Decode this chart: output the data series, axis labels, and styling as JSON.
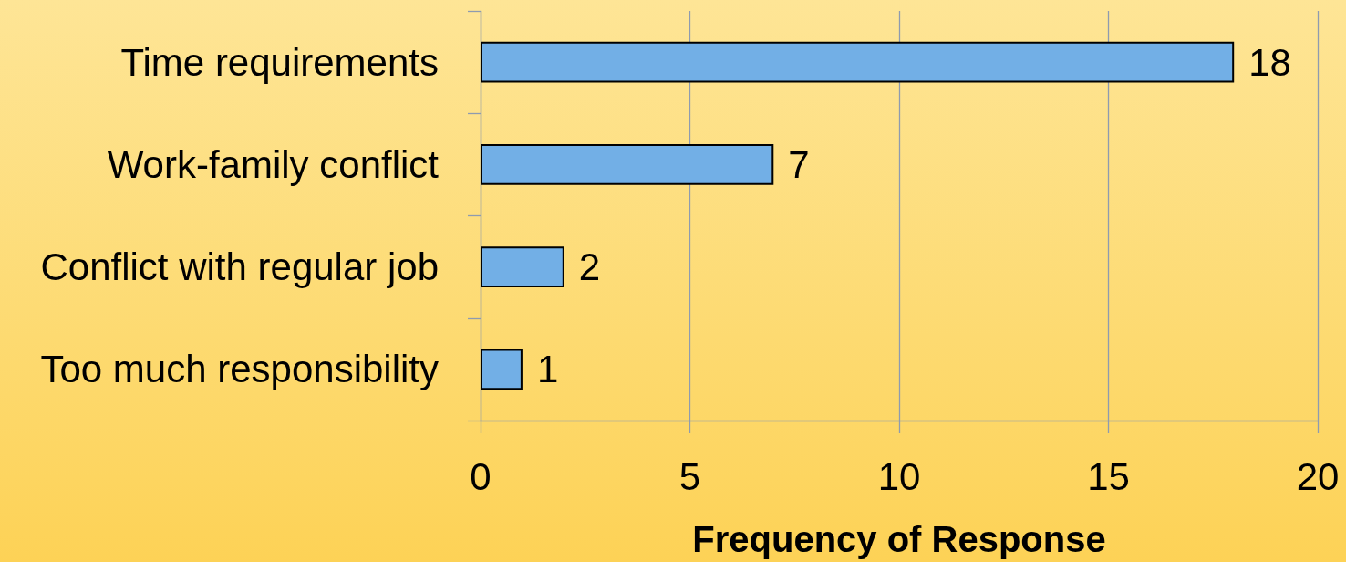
{
  "chart_data": {
    "type": "bar",
    "orientation": "horizontal",
    "categories": [
      "Time requirements",
      "Work-family conflict",
      "Conflict with regular job",
      "Too much responsibility"
    ],
    "values": [
      18,
      7,
      2,
      1
    ],
    "color": "#72afe6",
    "xlabel": "Frequency of Response",
    "xlim": [
      0,
      20
    ],
    "xticks": [
      0,
      5,
      10,
      15,
      20
    ],
    "grid": "x",
    "data_labels": true
  }
}
